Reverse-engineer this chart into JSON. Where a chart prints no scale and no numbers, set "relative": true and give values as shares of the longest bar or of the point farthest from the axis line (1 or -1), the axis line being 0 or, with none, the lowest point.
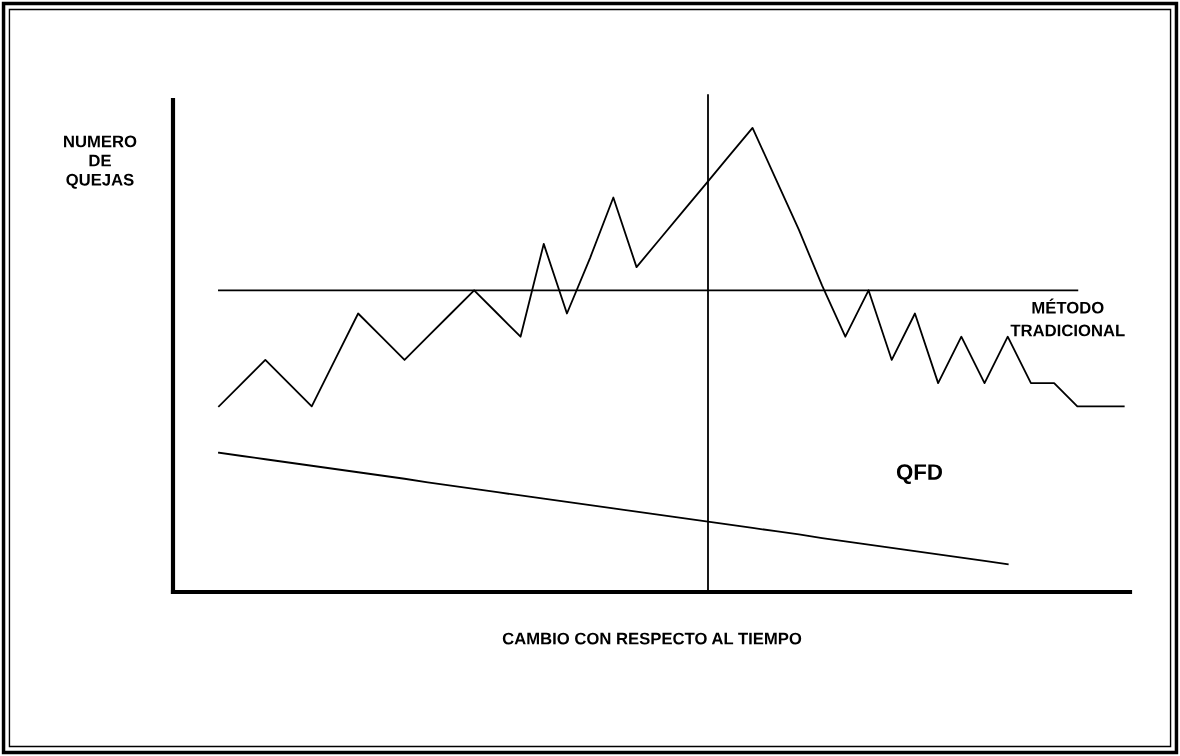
{
  "chart_data": {
    "type": "line",
    "relative": true,
    "xlabel": "CAMBIO CON RESPECTO AL TIEMPO",
    "ylabel": "NUMERO\nDE\nQUEJAS",
    "marker": "none",
    "line_style": "solid",
    "categories": [
      null,
      null,
      null,
      null,
      null,
      null,
      null,
      null,
      null,
      null,
      null,
      null,
      null,
      null,
      null,
      null,
      null,
      null,
      null,
      null,
      null,
      null,
      null,
      null,
      null,
      null,
      null,
      null,
      null,
      null,
      null,
      null,
      null,
      null,
      null,
      null,
      null,
      null,
      null,
      null
    ],
    "series": [
      {
        "name": "MÉTODO\nTRADICIONAL",
        "color": "#000000",
        "values": [
          0.4,
          0.45,
          0.5,
          0.45,
          0.4,
          0.5,
          0.6,
          0.55,
          0.5,
          0.55,
          0.6,
          0.65,
          0.6,
          0.55,
          0.75,
          0.6,
          0.72,
          0.85,
          0.7,
          0.76,
          0.82,
          0.88,
          0.94,
          1.0,
          0.89,
          0.78,
          0.66,
          0.55,
          0.65,
          0.5,
          0.6,
          0.45,
          0.55,
          0.45,
          0.55,
          0.45,
          0.45,
          0.4,
          0.4,
          0.4
        ]
      },
      {
        "color": "#000000",
        "values": [
          0.65,
          0.65,
          0.65,
          0.65,
          0.65,
          0.65,
          0.65,
          0.65,
          0.65,
          0.65,
          0.65,
          0.65,
          0.65,
          0.65,
          0.65,
          0.65,
          0.65,
          0.65,
          0.65,
          0.65,
          0.65,
          0.65,
          0.65,
          0.65,
          0.65,
          0.65,
          0.65,
          0.65,
          0.65,
          0.65,
          0.65,
          0.65,
          0.65,
          0.65,
          0.65,
          0.65,
          0.65,
          0.65,
          null,
          null
        ]
      },
      {
        "name": "QFD",
        "color": "#000000",
        "values": [
          0.3,
          0.293,
          0.286,
          0.279,
          0.272,
          0.265,
          0.258,
          0.251,
          0.244,
          0.236,
          0.229,
          0.222,
          0.215,
          0.208,
          0.201,
          0.194,
          0.187,
          0.18,
          0.173,
          0.166,
          0.159,
          0.152,
          0.145,
          0.138,
          0.131,
          0.124,
          0.116,
          0.109,
          0.102,
          0.095,
          0.088,
          0.081,
          0.074,
          0.067,
          0.06,
          null,
          null,
          null,
          null,
          null
        ]
      }
    ]
  }
}
